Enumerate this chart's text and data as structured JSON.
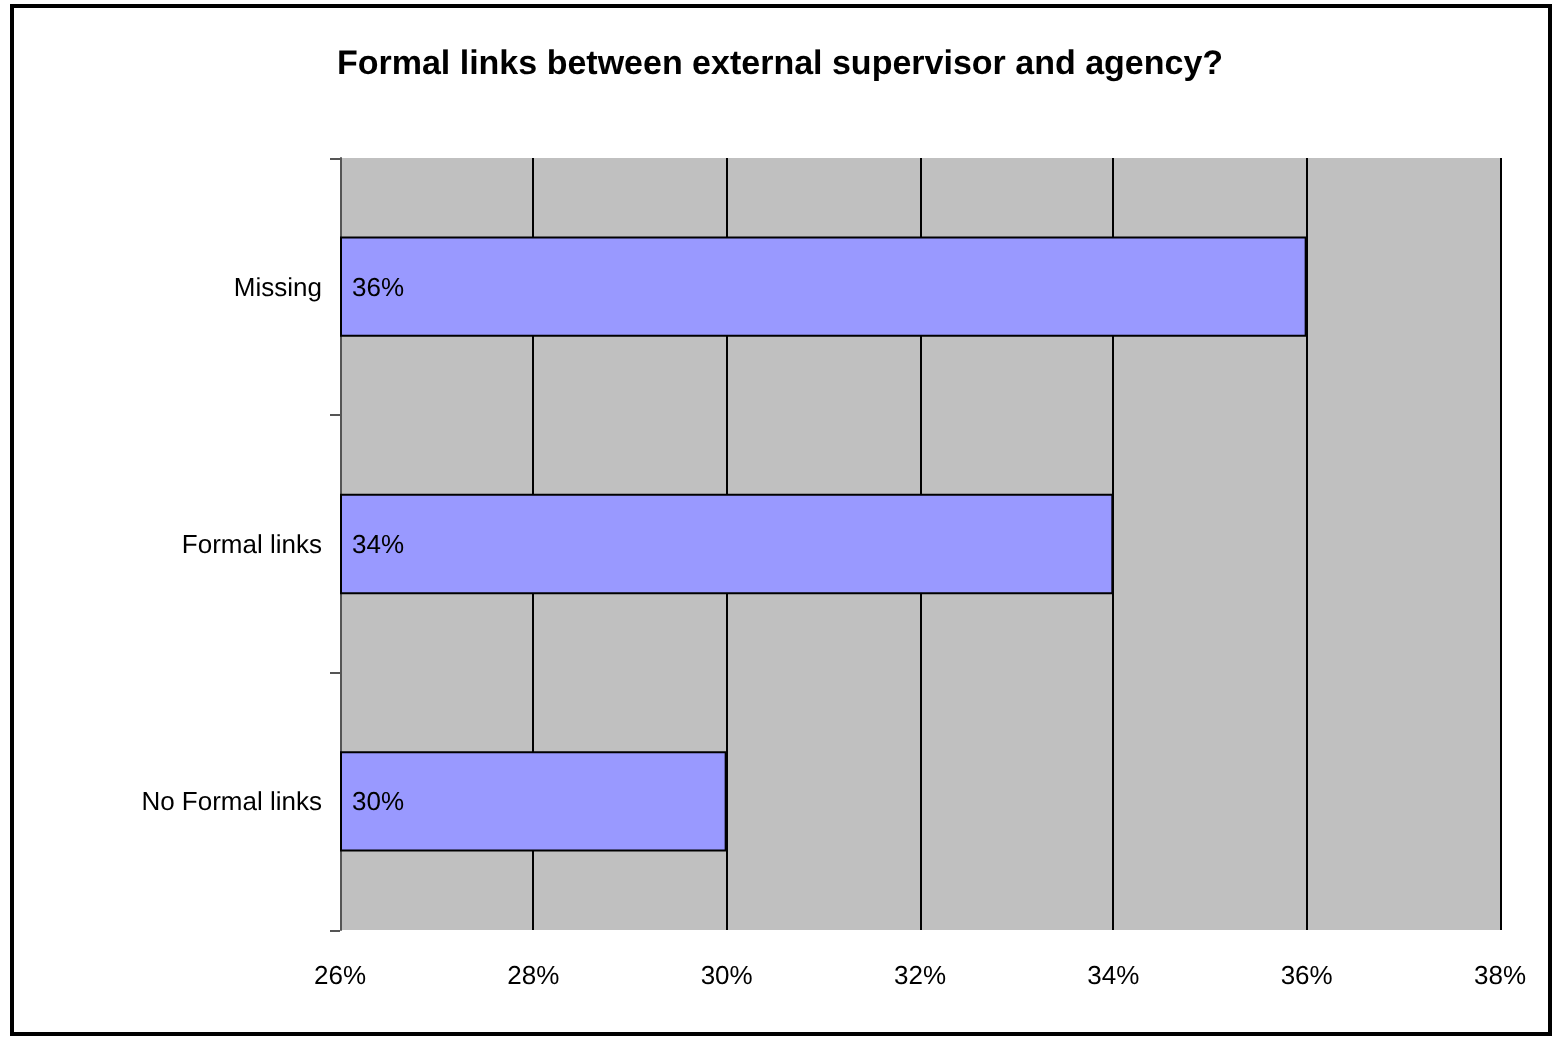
{
  "chart_data": {
    "type": "bar",
    "orientation": "horizontal",
    "title": "Formal links between external supervisor and agency?",
    "categories": [
      "Missing",
      "Formal links",
      "No Formal links"
    ],
    "values": [
      36,
      34,
      30
    ],
    "value_labels": [
      "36%",
      "34%",
      "30%"
    ],
    "color": "#9999ff",
    "xlim": [
      26,
      38
    ],
    "xticks": [
      {
        "value": 26,
        "label": "26%"
      },
      {
        "value": 28,
        "label": "28%"
      },
      {
        "value": 30,
        "label": "30%"
      },
      {
        "value": 32,
        "label": "32%"
      },
      {
        "value": 34,
        "label": "34%"
      },
      {
        "value": 36,
        "label": "36%"
      },
      {
        "value": 38,
        "label": "38%"
      }
    ],
    "grid": "x"
  }
}
